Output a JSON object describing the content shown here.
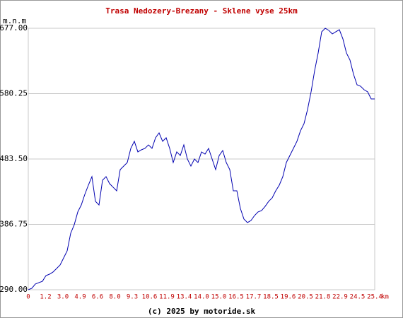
{
  "chart_data": {
    "type": "line",
    "title": "Trasa Nedozery-Brezany - Sklene vyse 25km",
    "y_label": "m.n.m",
    "x_unit": "km",
    "footer": "(c) 2025 by motoride.sk",
    "x_tick_labels": [
      "0",
      "1.2",
      "3.0",
      "4.9",
      "6.6",
      "8.0",
      "9.3",
      "10.6",
      "11.9",
      "13.4",
      "14.0",
      "15.0",
      "16.5",
      "17.7",
      "18.5",
      "19.6",
      "20.5",
      "21.8",
      "22.9",
      "24.5",
      "25.4"
    ],
    "ylim": [
      290,
      677
    ],
    "yticks": [
      {
        "value": 290,
        "label": "290.00"
      },
      {
        "value": 386.75,
        "label": "386.75"
      },
      {
        "value": 483.5,
        "label": "483.50"
      },
      {
        "value": 580.25,
        "label": "580.25"
      },
      {
        "value": 677,
        "label": "677.00"
      }
    ],
    "grid": true,
    "color": "#0000b0",
    "values": [
      290.0,
      292.1,
      298.4,
      300.5,
      302.5,
      310.9,
      313.0,
      316.2,
      321.4,
      326.6,
      337.1,
      347.6,
      373.7,
      386.2,
      405.1,
      415.5,
      431.2,
      444.8,
      457.4,
      420.8,
      415.5,
      452.1,
      457.4,
      447.0,
      441.7,
      436.4,
      467.8,
      473.0,
      478.3,
      499.2,
      509.7,
      494.0,
      497.1,
      499.2,
      504.4,
      499.2,
      514.9,
      522.2,
      509.7,
      514.9,
      499.2,
      478.3,
      494.0,
      488.7,
      504.4,
      483.5,
      473.0,
      483.5,
      478.3,
      494.0,
      490.8,
      499.2,
      483.5,
      467.8,
      488.7,
      496.1,
      478.3,
      467.8,
      436.4,
      436.4,
      410.3,
      394.6,
      389.4,
      392.5,
      399.8,
      405.1,
      407.2,
      413.4,
      420.8,
      426.0,
      436.4,
      444.8,
      457.4,
      478.3,
      488.7,
      499.2,
      509.7,
      525.3,
      535.8,
      556.7,
      582.9,
      614.2,
      640.4,
      671.8,
      677.0,
      673.9,
      668.6,
      671.8,
      674.9,
      661.3,
      640.4,
      630.0,
      609.0,
      593.3,
      591.2,
      586.0,
      582.9,
      572.4,
      572.4
    ]
  }
}
